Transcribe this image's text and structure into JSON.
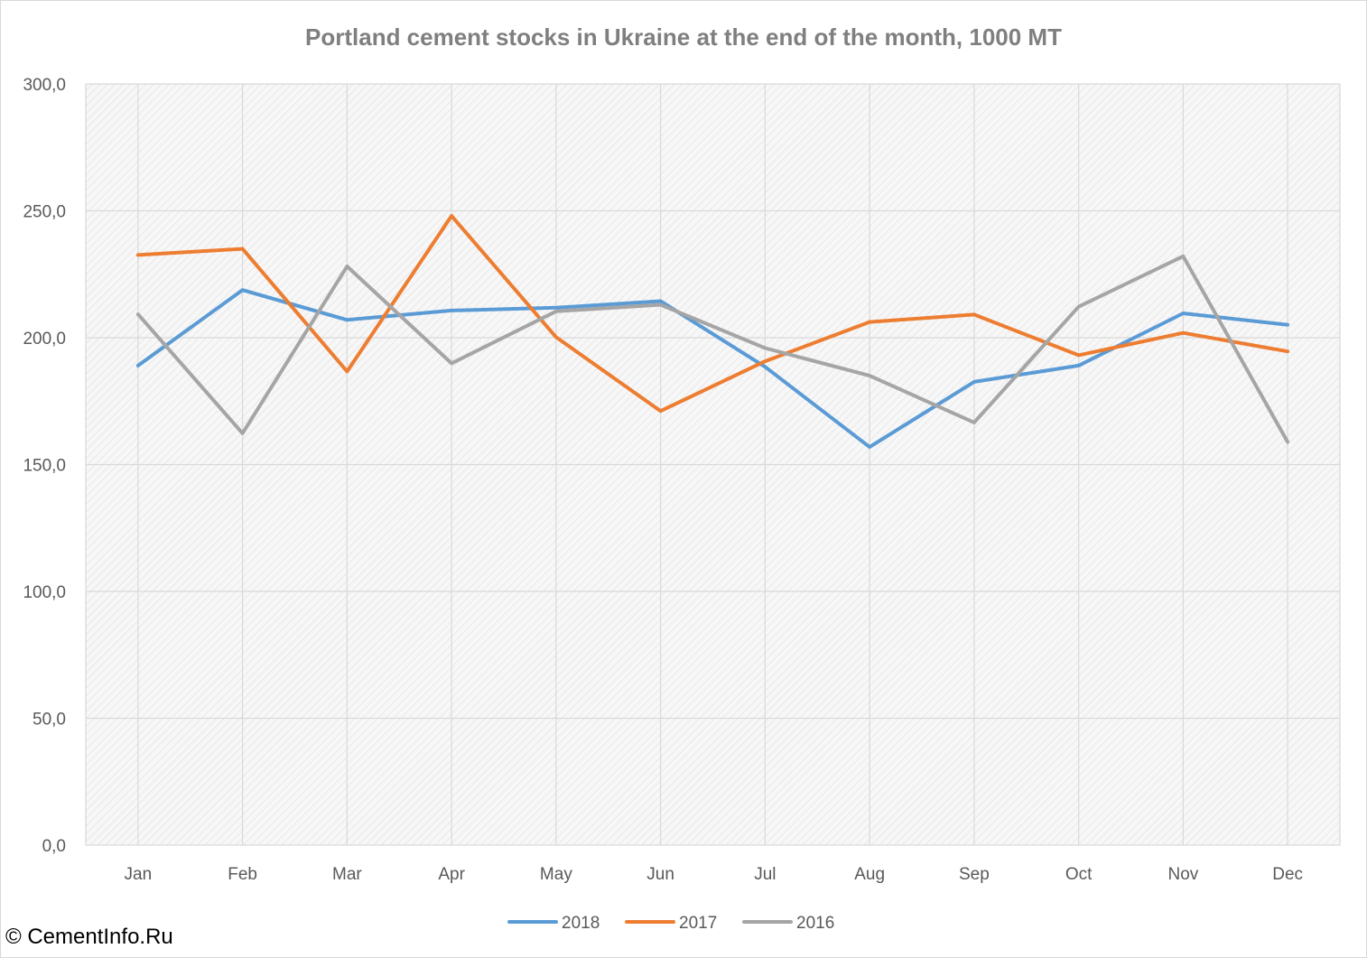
{
  "chart_data": {
    "type": "line",
    "title": "Portland cement stocks in Ukraine at the end of the month, 1000 MT",
    "categories": [
      "Jan",
      "Feb",
      "Mar",
      "Apr",
      "May",
      "Jun",
      "Jul",
      "Aug",
      "Sep",
      "Oct",
      "Nov",
      "Dec"
    ],
    "series": [
      {
        "name": "2018",
        "color": "#5b9bd5",
        "values": [
          189.0,
          218.8,
          207.0,
          210.7,
          211.8,
          214.4,
          188.5,
          156.9,
          182.6,
          189.0,
          209.6,
          205.1
        ]
      },
      {
        "name": "2017",
        "color": "#ed7d31",
        "values": [
          232.6,
          235.0,
          186.7,
          248.0,
          200.2,
          171.1,
          190.7,
          206.2,
          209.1,
          193.1,
          201.9,
          194.6
        ]
      },
      {
        "name": "2016",
        "color": "#a5a5a5",
        "values": [
          209.2,
          162.3,
          228.1,
          189.9,
          210.4,
          213.0,
          195.9,
          185.0,
          166.6,
          212.2,
          232.1,
          158.9
        ]
      }
    ],
    "y_ticks": [
      "0,0",
      "50,0",
      "100,0",
      "150,0",
      "200,0",
      "250,0",
      "300,0"
    ],
    "ylim": [
      0,
      300
    ],
    "grid": true,
    "legend": "bottom"
  },
  "watermark": "© CementInfo.Ru"
}
